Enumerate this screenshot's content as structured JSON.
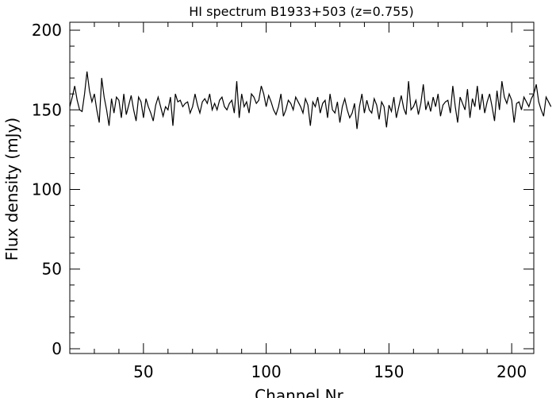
{
  "chart_data": {
    "type": "line",
    "title": "HI spectrum B1933+503 (z=0.755)",
    "xlabel": "Channel Nr",
    "ylabel": "Flux density (mJy)",
    "xlim": [
      20,
      209
    ],
    "ylim": [
      -3,
      205
    ],
    "xticks": [
      {
        "value": 50,
        "label": "50"
      },
      {
        "value": 100,
        "label": "100"
      },
      {
        "value": 150,
        "label": "150"
      },
      {
        "value": 200,
        "label": "200"
      }
    ],
    "yticks": [
      {
        "value": 0,
        "label": "0"
      },
      {
        "value": 50,
        "label": "50"
      },
      {
        "value": 100,
        "label": "100"
      },
      {
        "value": 150,
        "label": "150"
      },
      {
        "value": 200,
        "label": "200"
      }
    ],
    "grid": false,
    "legend": "none",
    "colors": {
      "line": "#000000",
      "axes": "#000000",
      "background": "#ffffff"
    },
    "series": [
      {
        "x_start": 20,
        "x_step": 1,
        "values": [
          152,
          158,
          165,
          156,
          150,
          149,
          160,
          174,
          162,
          155,
          160,
          150,
          142,
          170,
          158,
          150,
          140,
          157,
          148,
          158,
          156,
          145,
          160,
          147,
          153,
          159,
          150,
          143,
          158,
          155,
          145,
          157,
          152,
          148,
          143,
          153,
          158,
          152,
          146,
          152,
          150,
          158,
          140,
          160,
          155,
          156,
          152,
          154,
          155,
          148,
          152,
          160,
          153,
          148,
          155,
          157,
          154,
          160,
          150,
          154,
          150,
          156,
          158,
          152,
          150,
          154,
          156,
          148,
          168,
          145,
          160,
          152,
          155,
          148,
          160,
          158,
          154,
          156,
          165,
          160,
          152,
          159,
          155,
          150,
          147,
          152,
          160,
          146,
          150,
          156,
          154,
          150,
          158,
          155,
          152,
          148,
          157,
          153,
          140,
          155,
          152,
          158,
          148,
          154,
          156,
          145,
          160,
          150,
          148,
          155,
          142,
          152,
          157,
          150,
          145,
          148,
          154,
          138,
          152,
          160,
          148,
          156,
          150,
          148,
          157,
          153,
          144,
          155,
          152,
          139,
          153,
          149,
          158,
          145,
          152,
          159,
          151,
          147,
          168,
          150,
          152,
          156,
          147,
          154,
          166,
          150,
          155,
          149,
          158,
          152,
          160,
          146,
          153,
          155,
          156,
          148,
          165,
          152,
          142,
          158,
          154,
          150,
          163,
          145,
          157,
          152,
          165,
          150,
          160,
          148,
          155,
          160,
          152,
          143,
          162,
          150,
          168,
          158,
          154,
          160,
          156,
          142,
          154,
          155,
          150,
          158,
          155,
          152,
          157,
          160,
          166,
          155,
          150,
          146,
          158,
          155,
          152
        ]
      }
    ]
  }
}
